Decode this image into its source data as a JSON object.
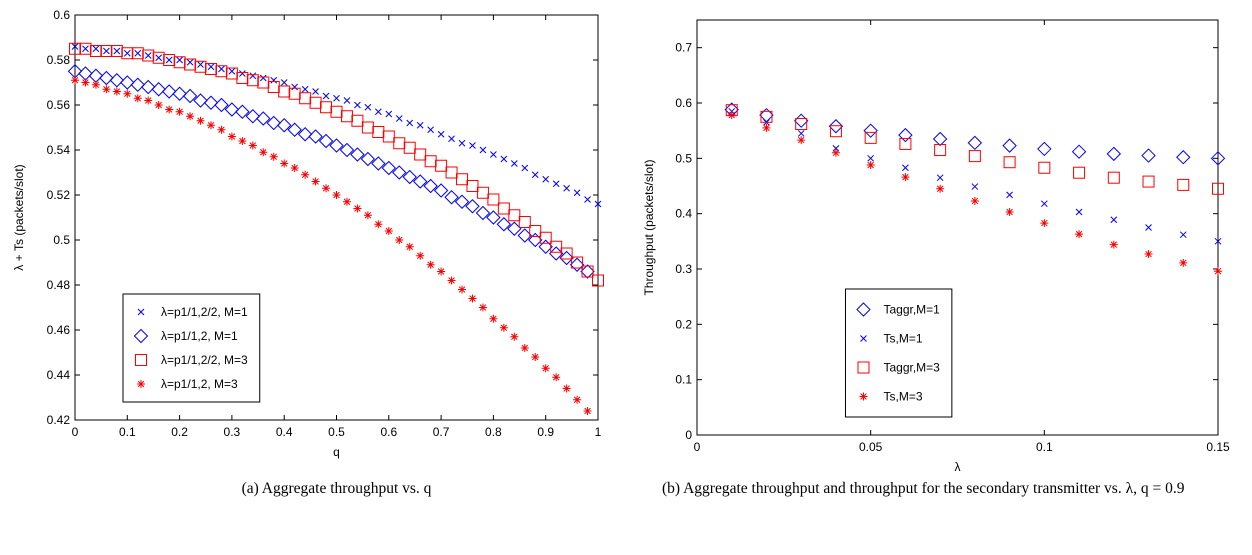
{
  "chart_data": [
    {
      "type": "scatter",
      "xlabel": "q",
      "ylabel": "λ + Ts (packets/slot)",
      "caption": "(a) Aggregate throughput vs. q",
      "x": [
        0,
        0.02,
        0.04,
        0.06,
        0.08,
        0.1,
        0.12,
        0.14,
        0.16,
        0.18,
        0.2,
        0.22,
        0.24,
        0.26,
        0.28,
        0.3,
        0.32,
        0.34,
        0.36,
        0.38,
        0.4,
        0.42,
        0.44,
        0.46,
        0.48,
        0.5,
        0.52,
        0.54,
        0.56,
        0.58,
        0.6,
        0.62,
        0.64,
        0.66,
        0.68,
        0.7,
        0.72,
        0.74,
        0.76,
        0.78,
        0.8,
        0.82,
        0.84,
        0.86,
        0.88,
        0.9,
        0.92,
        0.94,
        0.96,
        0.98,
        1
      ],
      "xlim": [
        0,
        1
      ],
      "xticks": [
        0,
        0.1,
        0.2,
        0.3,
        0.4,
        0.5,
        0.6,
        0.7,
        0.8,
        0.9,
        1
      ],
      "ylim": [
        0.42,
        0.6
      ],
      "yticks": [
        0.42,
        0.44,
        0.46,
        0.48,
        0.5,
        0.52,
        0.54,
        0.56,
        0.58,
        0.6
      ],
      "grid": false,
      "legend": "lower left",
      "series": [
        {
          "name": "λ=p1/1,2/2, M=1",
          "color": "#0000ff",
          "marker": "x",
          "values": [
            0.586,
            0.585,
            0.585,
            0.584,
            0.584,
            0.583,
            0.583,
            0.582,
            0.581,
            0.58,
            0.58,
            0.579,
            0.578,
            0.577,
            0.576,
            0.575,
            0.574,
            0.573,
            0.572,
            0.571,
            0.57,
            0.568,
            0.567,
            0.566,
            0.564,
            0.563,
            0.562,
            0.56,
            0.559,
            0.557,
            0.556,
            0.554,
            0.552,
            0.551,
            0.549,
            0.547,
            0.545,
            0.543,
            0.542,
            0.54,
            0.538,
            0.536,
            0.534,
            0.532,
            0.529,
            0.527,
            0.525,
            0.523,
            0.521,
            0.518,
            0.516
          ]
        },
        {
          "name": "λ=p1/1,2, M=1",
          "color": "#0000ff",
          "marker": "diamond",
          "values": [
            0.575,
            0.574,
            0.573,
            0.572,
            0.571,
            0.57,
            0.569,
            0.568,
            0.567,
            0.566,
            0.565,
            0.564,
            0.562,
            0.561,
            0.56,
            0.558,
            0.557,
            0.555,
            0.554,
            0.552,
            0.551,
            0.549,
            0.547,
            0.546,
            0.544,
            0.542,
            0.54,
            0.538,
            0.536,
            0.534,
            0.532,
            0.53,
            0.528,
            0.526,
            0.524,
            0.522,
            0.519,
            0.517,
            0.515,
            0.512,
            0.51,
            0.507,
            0.505,
            0.502,
            0.5,
            0.497,
            0.494,
            0.492,
            0.489,
            0.486,
            null
          ]
        },
        {
          "name": "λ=p1/1,2/2, M=3",
          "color": "#ff0000",
          "marker": "square",
          "values": [
            0.585,
            0.585,
            0.584,
            0.584,
            0.584,
            0.583,
            0.583,
            0.582,
            0.581,
            0.58,
            0.579,
            0.578,
            0.577,
            0.576,
            0.575,
            0.574,
            0.572,
            0.571,
            0.57,
            0.568,
            0.566,
            0.565,
            0.563,
            0.561,
            0.559,
            0.557,
            0.555,
            0.553,
            0.55,
            0.548,
            0.546,
            0.543,
            0.541,
            0.538,
            0.535,
            0.533,
            0.53,
            0.527,
            0.524,
            0.521,
            0.518,
            0.514,
            0.511,
            0.508,
            0.504,
            0.501,
            0.497,
            0.494,
            0.49,
            0.486,
            0.482
          ]
        },
        {
          "name": "λ=p1/1,2, M=3",
          "color": "#ff0000",
          "marker": "star",
          "values": [
            0.571,
            0.57,
            0.569,
            0.567,
            0.566,
            0.565,
            0.563,
            0.562,
            0.56,
            0.558,
            0.557,
            0.555,
            0.553,
            0.551,
            0.549,
            0.546,
            0.544,
            0.542,
            0.539,
            0.537,
            0.534,
            0.532,
            0.529,
            0.526,
            0.523,
            0.52,
            0.517,
            0.514,
            0.511,
            0.507,
            0.504,
            0.5,
            0.497,
            0.493,
            0.489,
            0.486,
            0.482,
            0.478,
            0.474,
            0.47,
            0.465,
            0.461,
            0.457,
            0.452,
            0.448,
            0.443,
            0.439,
            0.434,
            0.429,
            0.424,
            null
          ]
        }
      ]
    },
    {
      "type": "scatter",
      "xlabel": "λ",
      "ylabel": "Throughput (packets/slot)",
      "caption": "(b) Aggregate throughput and throughput for the secondary transmitter vs. λ, q = 0.9",
      "x": [
        0.01,
        0.02,
        0.03,
        0.04,
        0.05,
        0.06,
        0.07,
        0.08,
        0.09,
        0.1,
        0.11,
        0.12,
        0.13,
        0.14,
        0.15
      ],
      "xlim": [
        0,
        0.15
      ],
      "xticks": [
        0,
        0.05,
        0.1,
        0.15
      ],
      "ylim": [
        0,
        0.75
      ],
      "yticks": [
        0,
        0.1,
        0.2,
        0.3,
        0.4,
        0.5,
        0.6,
        0.7
      ],
      "grid": false,
      "legend": "lower center",
      "series": [
        {
          "name": "Taggr,M=1",
          "color": "#0000ff",
          "marker": "diamond",
          "values": [
            0.588,
            0.578,
            0.568,
            0.558,
            0.55,
            0.542,
            0.535,
            0.528,
            0.523,
            0.517,
            0.512,
            0.508,
            0.505,
            0.502,
            0.5
          ]
        },
        {
          "name": "Ts,M=1",
          "color": "#0000ff",
          "marker": "x",
          "values": [
            0.585,
            0.565,
            0.545,
            0.518,
            0.5,
            0.483,
            0.465,
            0.449,
            0.434,
            0.418,
            0.403,
            0.389,
            0.375,
            0.362,
            0.35
          ]
        },
        {
          "name": "Taggr,M=3",
          "color": "#ff0000",
          "marker": "square",
          "values": [
            0.587,
            0.575,
            0.562,
            0.549,
            0.537,
            0.526,
            0.515,
            0.504,
            0.493,
            0.483,
            0.474,
            0.465,
            0.458,
            0.452,
            0.445
          ]
        },
        {
          "name": "Ts,M=3",
          "color": "#ff0000",
          "marker": "star",
          "values": [
            0.578,
            0.555,
            0.533,
            0.51,
            0.488,
            0.466,
            0.445,
            0.423,
            0.403,
            0.383,
            0.363,
            0.344,
            0.327,
            0.311,
            0.296
          ]
        }
      ]
    }
  ]
}
